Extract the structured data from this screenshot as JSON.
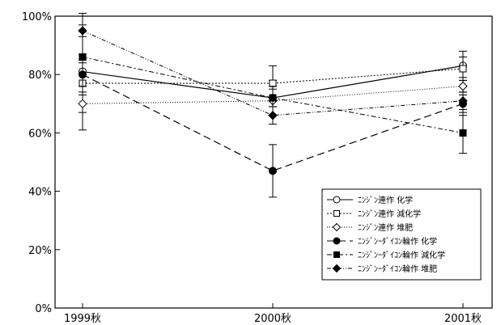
{
  "chart_data": {
    "type": "line",
    "title": "",
    "xlabel": "",
    "ylabel": "",
    "categories": [
      "1999秋",
      "2000秋",
      "2001秋"
    ],
    "ylim": [
      0,
      100
    ],
    "yticks": [
      0,
      20,
      40,
      60,
      80,
      100
    ],
    "ytick_labels": [
      "0%",
      "20%",
      "40%",
      "60%",
      "80%",
      "100%"
    ],
    "grid": false,
    "legend_position": "bottom-right",
    "series": [
      {
        "name": "ﾆﾝｼﾞﾝ連作 化学",
        "values": [
          81,
          72,
          83
        ],
        "errors": [
          20,
          6,
          5
        ],
        "marker": "circle-open",
        "dash": "",
        "stroke_width": 1.2
      },
      {
        "name": "ﾆﾝｼﾞﾝ連作 減化学",
        "values": [
          77,
          77,
          82
        ],
        "errors": [
          3,
          6,
          4
        ],
        "marker": "square-open",
        "dash": "2,2",
        "stroke_width": 1
      },
      {
        "name": "ﾆﾝｼﾞﾝ連作 堆肥",
        "values": [
          70,
          71,
          76
        ],
        "errors": [
          3,
          5,
          3
        ],
        "marker": "diamond-open",
        "dash": "1,2",
        "stroke_width": 1
      },
      {
        "name": "ﾆﾝｼﾞﾝｰﾀﾞｲｺﾝ輪作 化学",
        "values": [
          80,
          47,
          70
        ],
        "errors": [
          4,
          9,
          4
        ],
        "marker": "circle-filled",
        "dash": "9,5",
        "stroke_width": 1.2
      },
      {
        "name": "ﾆﾝｼﾞﾝｰﾀﾞｲｺﾝ輪作 減化学",
        "values": [
          86,
          72,
          60
        ],
        "errors": [
          1,
          3,
          7
        ],
        "marker": "square-filled",
        "dash": "6,3,2,3",
        "stroke_width": 1
      },
      {
        "name": "ﾆﾝｼﾞﾝｰﾀﾞｲｺﾝ輪作 堆肥",
        "values": [
          95,
          66,
          71
        ],
        "errors": [
          2,
          3,
          3
        ],
        "marker": "diamond-filled",
        "dash": "5,2,1,2,1,2",
        "stroke_width": 1
      }
    ]
  }
}
